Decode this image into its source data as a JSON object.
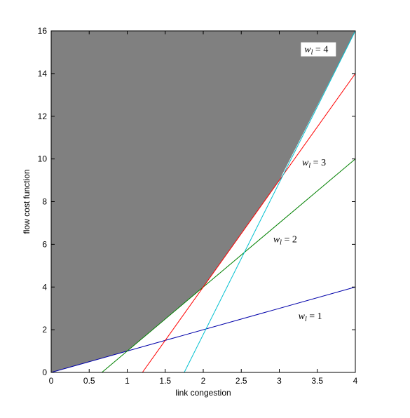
{
  "chart_data": {
    "type": "line",
    "title": "",
    "xlabel": "link congestion",
    "ylabel": "flow cost function",
    "xlim": [
      0,
      4
    ],
    "ylim": [
      0,
      16
    ],
    "x_ticks": [
      "0",
      "0.5",
      "1",
      "1.5",
      "2",
      "2.5",
      "3",
      "3.5",
      "4"
    ],
    "y_ticks": [
      "0",
      "2",
      "4",
      "6",
      "8",
      "10",
      "12",
      "14",
      "16"
    ],
    "grid": false,
    "background_color": "#ffffff",
    "shaded_region": {
      "color": "#808080",
      "boundary_x": [
        0,
        1,
        2,
        3,
        4
      ],
      "boundary_y": [
        0,
        1,
        4,
        9,
        16
      ]
    },
    "series": [
      {
        "color": "#0000aa",
        "x": [
          0,
          4
        ],
        "y": [
          0,
          4
        ]
      },
      {
        "color": "#008000",
        "x": [
          0.667,
          4
        ],
        "y": [
          0,
          10
        ]
      },
      {
        "color": "#ff0000",
        "x": [
          1.2,
          4
        ],
        "y": [
          0,
          14
        ]
      },
      {
        "color": "#00c0d0",
        "x": [
          1.75,
          4
        ],
        "y": [
          0,
          16
        ]
      }
    ],
    "annotations": [
      {
        "var": "w",
        "sub": "l",
        "eq": " = 1",
        "x": 3.25,
        "y": 2.5,
        "boxed": false
      },
      {
        "var": "w",
        "sub": "l",
        "eq": " = 2",
        "x": 2.92,
        "y": 6.1,
        "boxed": false
      },
      {
        "var": "w",
        "sub": "l",
        "eq": " = 3",
        "x": 3.3,
        "y": 9.7,
        "boxed": false
      },
      {
        "var": "w",
        "sub": "l",
        "eq": " = 4",
        "x": 3.33,
        "y": 15.0,
        "boxed": true
      }
    ]
  }
}
